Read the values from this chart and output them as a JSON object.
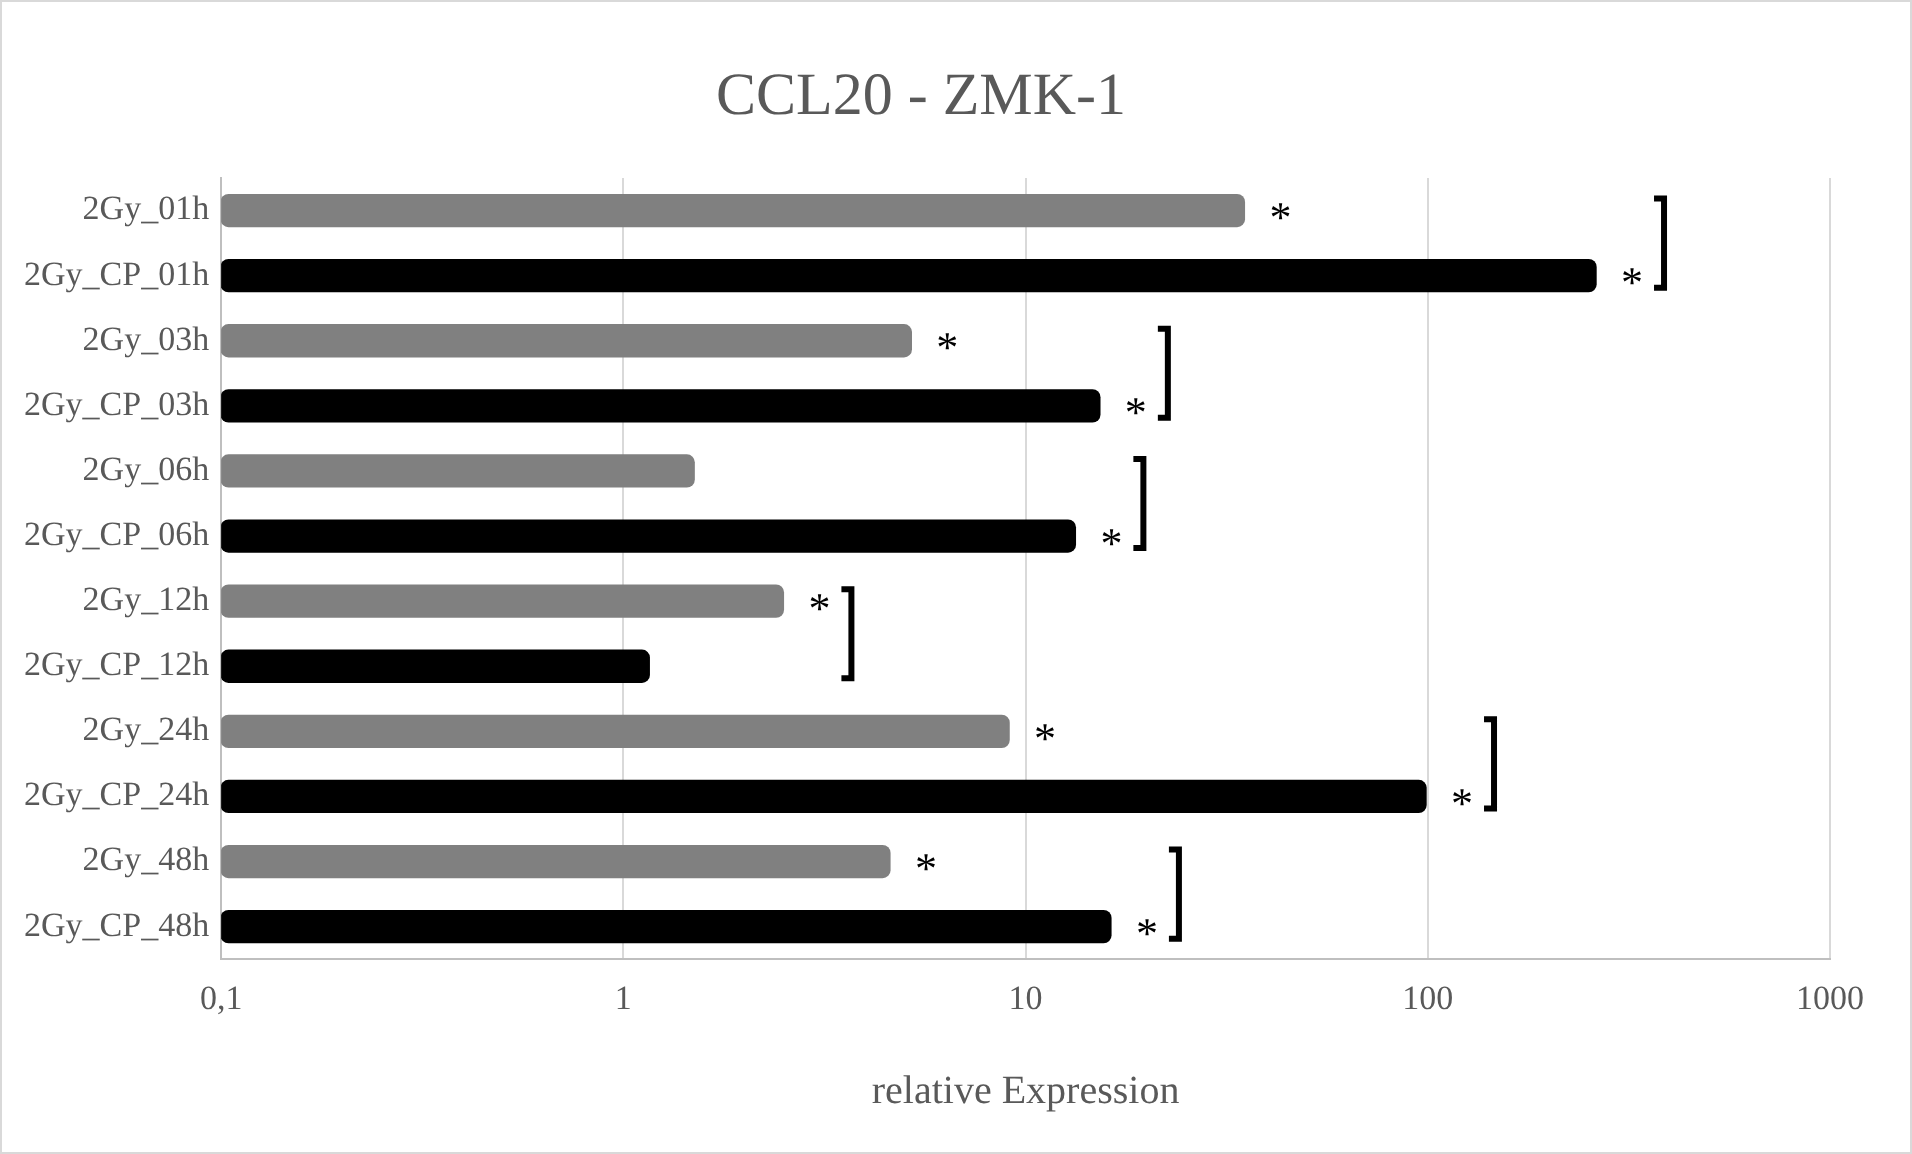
{
  "chart_data": {
    "type": "bar",
    "orientation": "horizontal",
    "title": "CCL20 - ZMK-1",
    "xlabel": "relative Expression",
    "categories": [
      "2Gy_01h",
      "2Gy_CP_01h",
      "2Gy_03h",
      "2Gy_CP_03h",
      "2Gy_06h",
      "2Gy_CP_06h",
      "2Gy_12h",
      "2Gy_CP_12h",
      "2Gy_24h",
      "2Gy_CP_24h",
      "2Gy_48h",
      "2Gy_CP_48h"
    ],
    "values": [
      35,
      262,
      5.2,
      15.3,
      1.5,
      13.3,
      2.5,
      1.16,
      9.1,
      99,
      4.6,
      16.3
    ],
    "colors": [
      "#808080",
      "#000000",
      "#808080",
      "#000000",
      "#808080",
      "#000000",
      "#808080",
      "#000000",
      "#808080",
      "#000000",
      "#808080",
      "#000000"
    ],
    "log": "x",
    "xlim": [
      0.1,
      1000
    ],
    "xticks": [
      {
        "value": 0.1,
        "label": "0,1"
      },
      1,
      10,
      100,
      1000
    ],
    "grid": "x",
    "legend": false,
    "annotations": [
      {
        "text": "*",
        "x": 35,
        "y": "2Gy_01h"
      },
      {
        "text": "*",
        "x": 262,
        "y": "2Gy_CP_01h"
      },
      {
        "text": "*",
        "x": 5.2,
        "y": "2Gy_03h"
      },
      {
        "text": "*",
        "x": 15.3,
        "y": "2Gy_CP_03h"
      },
      {
        "text": "*",
        "x": 13.3,
        "y": "2Gy_CP_06h"
      },
      {
        "text": "*",
        "x": 2.5,
        "y": "2Gy_12h"
      },
      {
        "text": "*",
        "x": 9.1,
        "y": "2Gy_24h"
      },
      {
        "text": "*",
        "x": 99,
        "y": "2Gy_CP_24h"
      },
      {
        "text": "*",
        "x": 4.6,
        "y": "2Gy_48h"
      },
      {
        "text": "*",
        "x": 16.3,
        "y": "2Gy_CP_48h"
      }
    ]
  }
}
